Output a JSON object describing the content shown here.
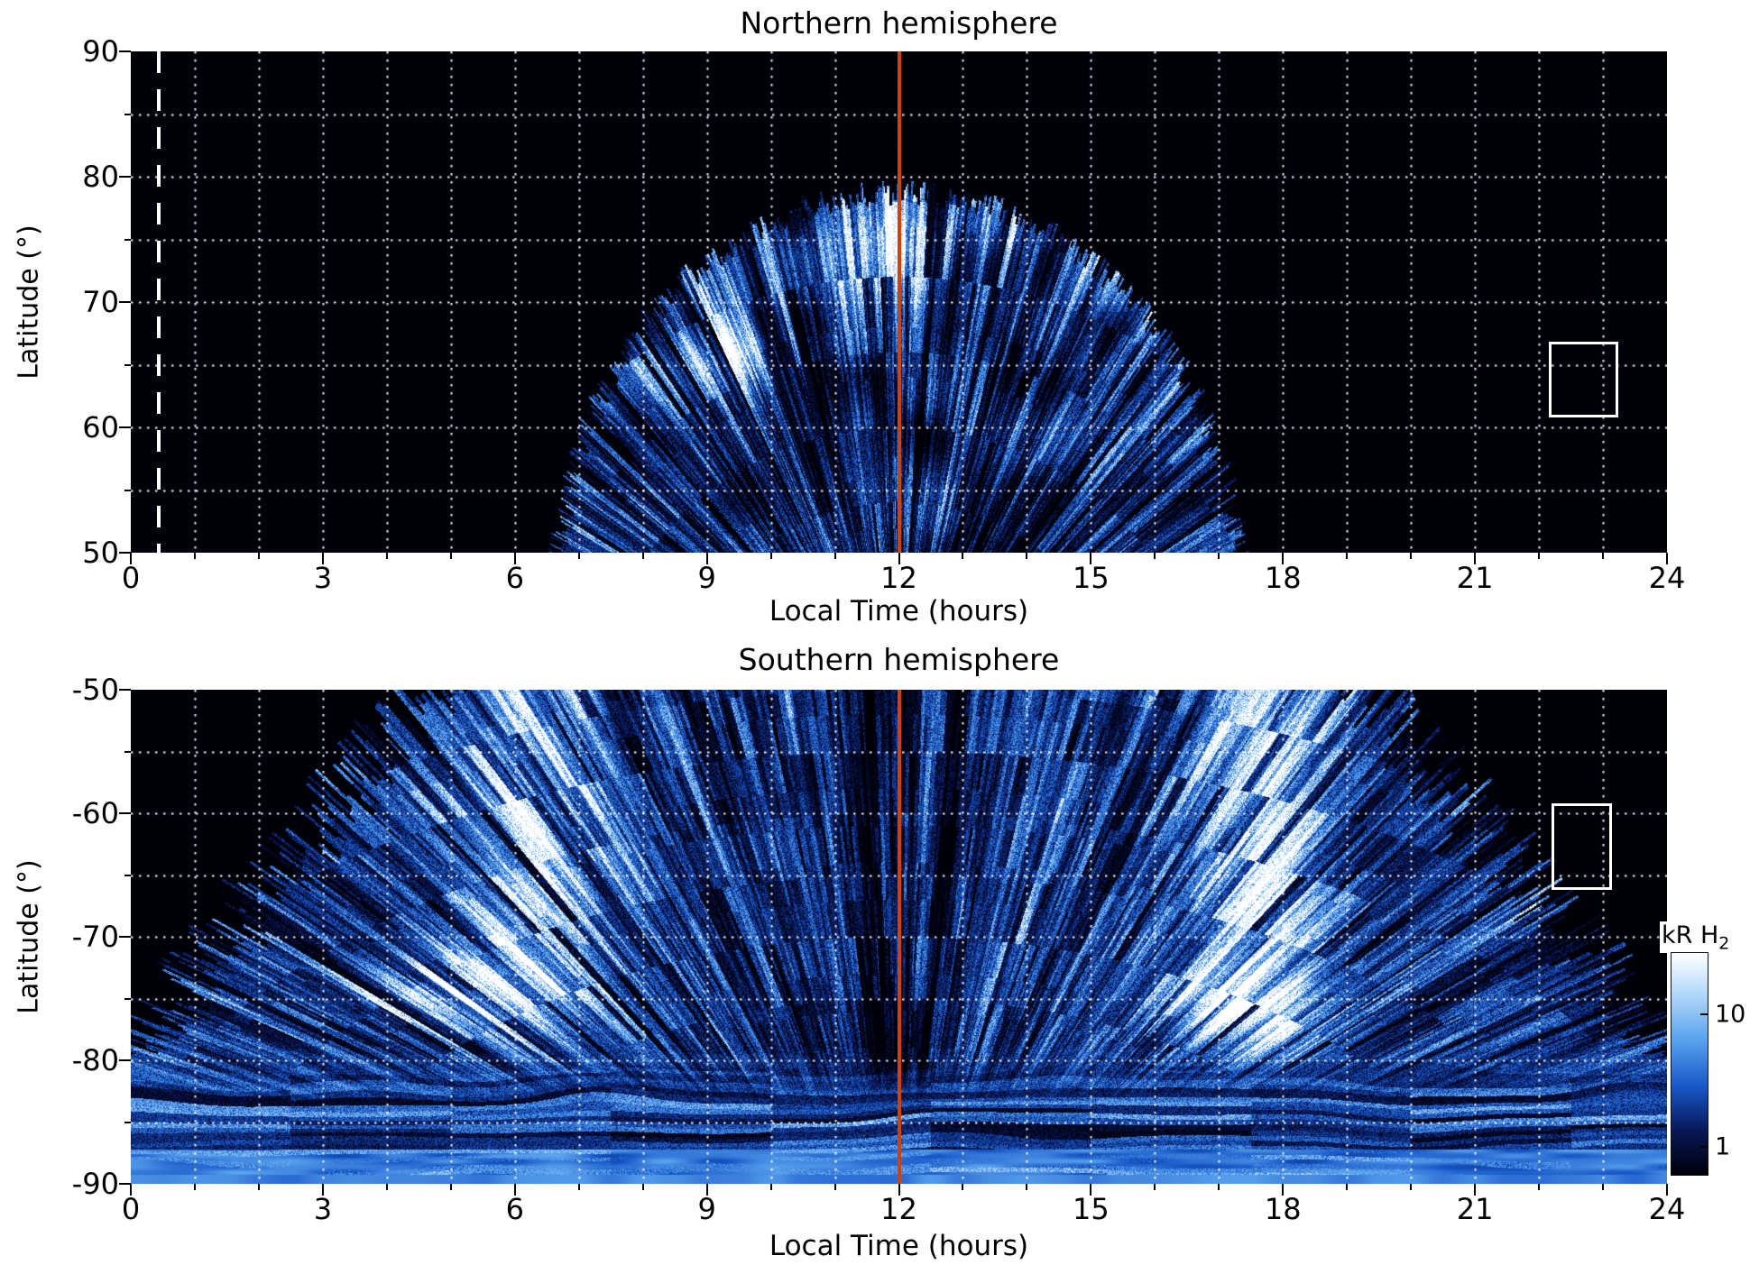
{
  "colors": {
    "plot_background": "#000000",
    "grid": "#ffffff",
    "noon_line": "#c94415",
    "annotation": "#ffffff",
    "cmap": [
      "#000008",
      "#081858",
      "#1858c8",
      "#55a0eb",
      "#acd4fa",
      "#ffffff"
    ]
  },
  "colorbar": {
    "title_main": "kR H",
    "title_sub": "2",
    "tick_labels": [
      "10",
      "1"
    ],
    "scale": "log",
    "orientation": "vertical",
    "top_color": "white (bright)",
    "bottom_color": "black (dim)"
  },
  "chart_data": [
    {
      "type": "heatmap",
      "title": "Northern hemisphere",
      "xlabel": "Local Time (hours)",
      "ylabel": "Latitude (°)",
      "xlim": [
        0,
        24
      ],
      "ylim": [
        90,
        50
      ],
      "xticks": [
        0,
        3,
        6,
        9,
        12,
        15,
        18,
        21,
        24
      ],
      "yticks": [
        90,
        80,
        70,
        60,
        50
      ],
      "grid": "white dotted lines every 1 hour and every 5 degrees",
      "colorbar_label": "kR H2",
      "colorbar_ticks": [
        10,
        1
      ],
      "annotations": {
        "noon_line_x": 12,
        "dashed_line_x": 0.43,
        "box": {
          "x0": 22.15,
          "x1": 23.15,
          "lat0": 61.2,
          "lat1": 66.8
        }
      },
      "emission": {
        "shape": "dome of speckled H2 auroral emission centered on 12 h local time",
        "extent_hours_at_lat_50": [
          7.0,
          17.2
        ],
        "max_latitude_reached": 78,
        "bright_patches": [
          {
            "local_time": 9.5,
            "latitude": 67
          },
          {
            "local_time": 12.1,
            "latitude": 74.5
          }
        ],
        "background": "black (no data) outside the dayside dome"
      }
    },
    {
      "type": "heatmap",
      "title": "Southern hemisphere",
      "xlabel": "Local Time (hours)",
      "ylabel": "Latitude (°)",
      "xlim": [
        0,
        24
      ],
      "ylim": [
        -50,
        -90
      ],
      "xticks": [
        0,
        3,
        6,
        9,
        12,
        15,
        18,
        21,
        24
      ],
      "yticks": [
        -50,
        -60,
        -70,
        -80,
        -90
      ],
      "grid": "white dotted lines every 1 hour and every 5 degrees",
      "colorbar_label": "kR H2",
      "colorbar_ticks": [
        10,
        1
      ],
      "annotations": {
        "noon_line_x": 12,
        "box": {
          "x0": 22.2,
          "x1": 23.05,
          "lat0": -65.8,
          "lat1": -59.2
        }
      },
      "emission": {
        "shape": "broad speckled H2 auroral emission, widening toward the pole; full 0-24 h coverage poleward of -80",
        "extent_hours_at_lat_minus50": [
          4.6,
          19.4
        ],
        "bright_vertical_bands_local_time": [
          6.3,
          17.6
        ],
        "bright_patches": [
          {
            "local_time": 4.9,
            "latitude": -74
          },
          {
            "local_time": 17.4,
            "latitude": -75
          }
        ],
        "polar_cap": "nearly uniform bright blue band between -87 and -90",
        "background": "black (no data) in the pre-dawn and post-dusk corners"
      }
    }
  ]
}
